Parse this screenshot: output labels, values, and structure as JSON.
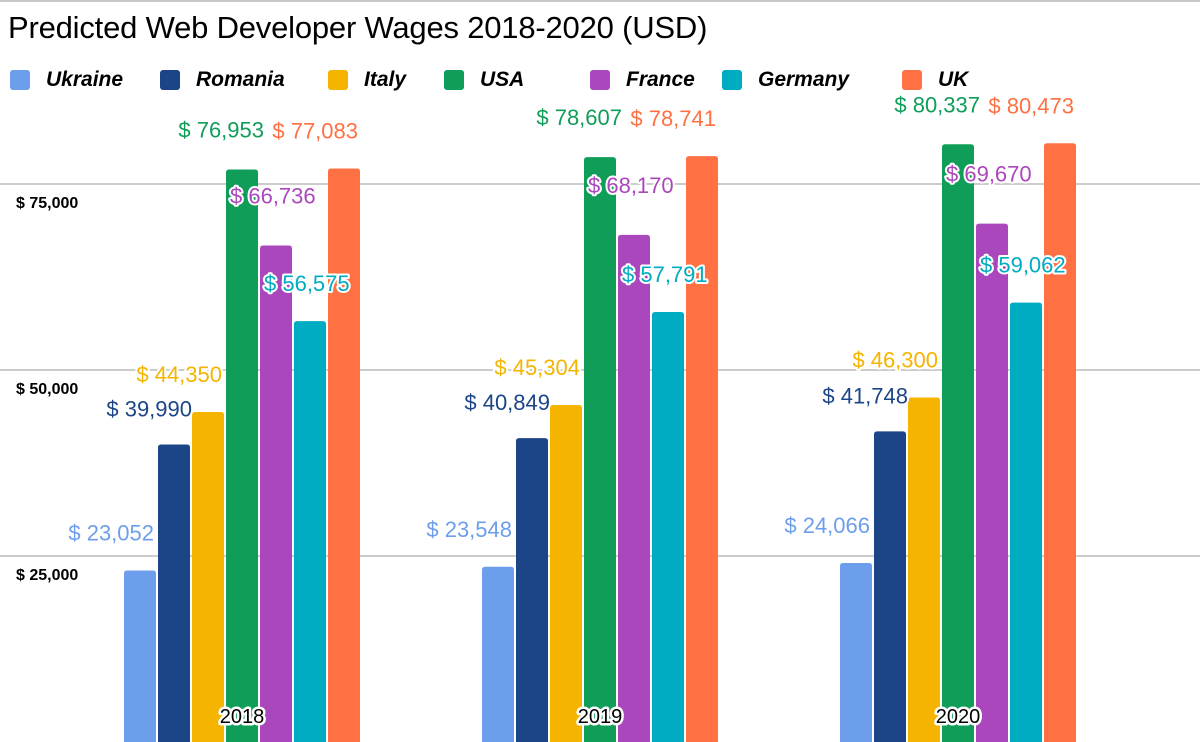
{
  "chart_data": {
    "type": "bar",
    "title": "Predicted Web Developer Wages 2018-2020 (USD)",
    "xlabel": "",
    "ylabel": "",
    "categories": [
      "2018",
      "2019",
      "2020"
    ],
    "series": [
      {
        "name": "Ukraine",
        "color": "#6d9eeb",
        "values": [
          23052,
          23548,
          24066
        ],
        "labels": [
          "$ 23,052",
          "$ 23,548",
          "$ 24,066"
        ]
      },
      {
        "name": "Romania",
        "color": "#1c4587",
        "values": [
          39990,
          40849,
          41748
        ],
        "labels": [
          "$ 39,990",
          "$ 40,849",
          "$ 41,748"
        ]
      },
      {
        "name": "Italy",
        "color": "#f4b400",
        "values": [
          44350,
          45304,
          46300
        ],
        "labels": [
          "$ 44,350",
          "$ 45,304",
          "$ 46,300"
        ]
      },
      {
        "name": "USA",
        "color": "#0f9d58",
        "values": [
          76953,
          78607,
          80337
        ],
        "labels": [
          "$ 76,953",
          "$ 78,607",
          "$ 80,337"
        ]
      },
      {
        "name": "France",
        "color": "#ab47bc",
        "values": [
          66736,
          68170,
          69670
        ],
        "labels": [
          "$ 66,736",
          "$ 68,170",
          "$ 69,670"
        ]
      },
      {
        "name": "Germany",
        "color": "#00acc1",
        "values": [
          56575,
          57791,
          59062
        ],
        "labels": [
          "$ 56,575",
          "$ 57,791",
          "$ 59,062"
        ]
      },
      {
        "name": "UK",
        "color": "#ff7043",
        "values": [
          77083,
          78741,
          80473
        ],
        "labels": [
          "$ 77,083",
          "$ 78,741",
          "$ 80,473"
        ]
      }
    ],
    "y_ticks": [
      {
        "value": 25000,
        "label": "$ 25,000"
      },
      {
        "value": 50000,
        "label": "$ 50,000"
      },
      {
        "value": 75000,
        "label": "$ 75,000"
      }
    ],
    "ylim": [
      0,
      100000
    ],
    "grid": true,
    "legend_position": "top-left"
  }
}
